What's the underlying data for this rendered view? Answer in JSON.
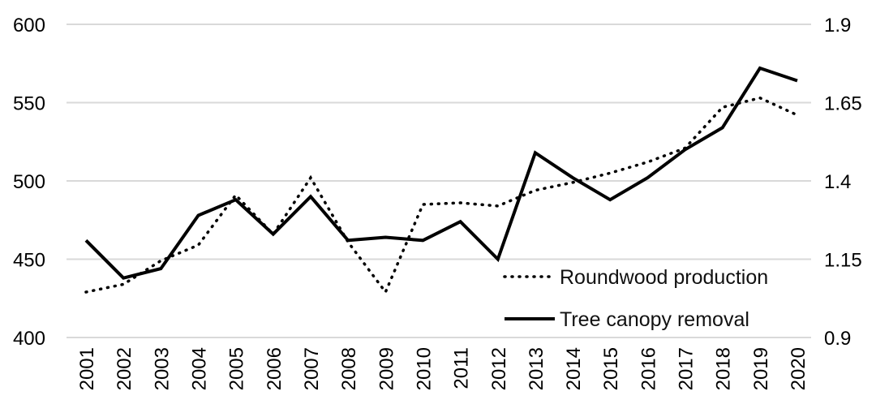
{
  "chart_data": {
    "type": "line",
    "categories": [
      "2001",
      "2002",
      "2003",
      "2004",
      "2005",
      "2006",
      "2007",
      "2008",
      "2009",
      "2010",
      "2011",
      "2012",
      "2013",
      "2014",
      "2015",
      "2016",
      "2017",
      "2018",
      "2019",
      "2020"
    ],
    "series": [
      {
        "name": "Roundwood production",
        "axis": "left",
        "style": "dotted",
        "values": [
          429,
          434,
          449,
          459,
          491,
          466,
          502,
          461,
          429,
          485,
          486,
          484,
          494,
          499,
          505,
          512,
          521,
          547,
          553,
          542
        ]
      },
      {
        "name": "Tree canopy removal",
        "axis": "right",
        "style": "solid",
        "values": [
          1.21,
          1.09,
          1.12,
          1.29,
          1.34,
          1.23,
          1.35,
          1.21,
          1.22,
          1.21,
          1.27,
          1.15,
          1.49,
          1.41,
          1.34,
          1.41,
          1.5,
          1.57,
          1.76,
          1.72
        ]
      }
    ],
    "y_left": {
      "min": 400,
      "max": 600,
      "ticks": [
        "400",
        "450",
        "500",
        "550",
        "600"
      ]
    },
    "y_right": {
      "min": 0.9,
      "max": 1.9,
      "ticks": [
        "0.9",
        "1.15",
        "1.4",
        "1.65",
        "1.9"
      ]
    },
    "grid": true,
    "legend_position": "bottom-right",
    "title": "",
    "xlabel": "",
    "ylabel": "",
    "colors": {
      "line": "#000000",
      "grid": "#d9d9d9"
    }
  }
}
